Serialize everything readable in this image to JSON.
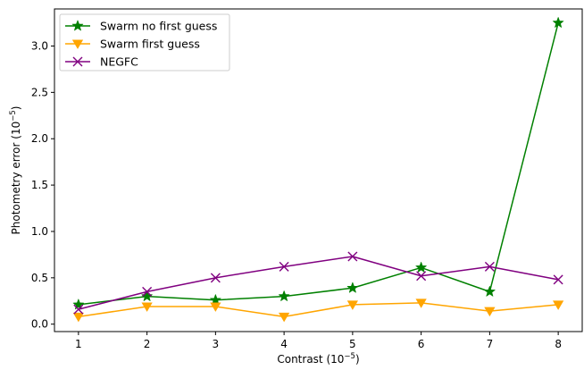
{
  "chart_data": {
    "type": "line",
    "xlabel": "Contrast (10",
    "xlabel_exp": "−5",
    "ylabel": "Photometry error (10",
    "ylabel_exp": "−5",
    "x": [
      1,
      2,
      3,
      4,
      5,
      6,
      7,
      8
    ],
    "xticks": [
      "1",
      "2",
      "3",
      "4",
      "5",
      "6",
      "7",
      "8"
    ],
    "yticks": [
      0.0,
      0.5,
      1.0,
      1.5,
      2.0,
      2.5,
      3.0
    ],
    "ytick_labels": [
      "0.0",
      "0.5",
      "1.0",
      "1.5",
      "2.0",
      "2.5",
      "3.0"
    ],
    "xlim": [
      0.65,
      8.35
    ],
    "ylim": [
      -0.08,
      3.4
    ],
    "grid": false,
    "legend_position": "upper-left",
    "series": [
      {
        "name": "Swarm no first guess",
        "color": "#008000",
        "marker": "star",
        "values": [
          0.21,
          0.3,
          0.26,
          0.3,
          0.39,
          0.61,
          0.35,
          3.25
        ]
      },
      {
        "name": "Swarm first guess",
        "color": "#FFA500",
        "marker": "triangle-down",
        "values": [
          0.08,
          0.19,
          0.19,
          0.08,
          0.21,
          0.23,
          0.14,
          0.21
        ]
      },
      {
        "name": "NEGFC",
        "color": "#800080",
        "marker": "x",
        "values": [
          0.16,
          0.35,
          0.5,
          0.62,
          0.73,
          0.52,
          0.62,
          0.48
        ]
      }
    ]
  }
}
